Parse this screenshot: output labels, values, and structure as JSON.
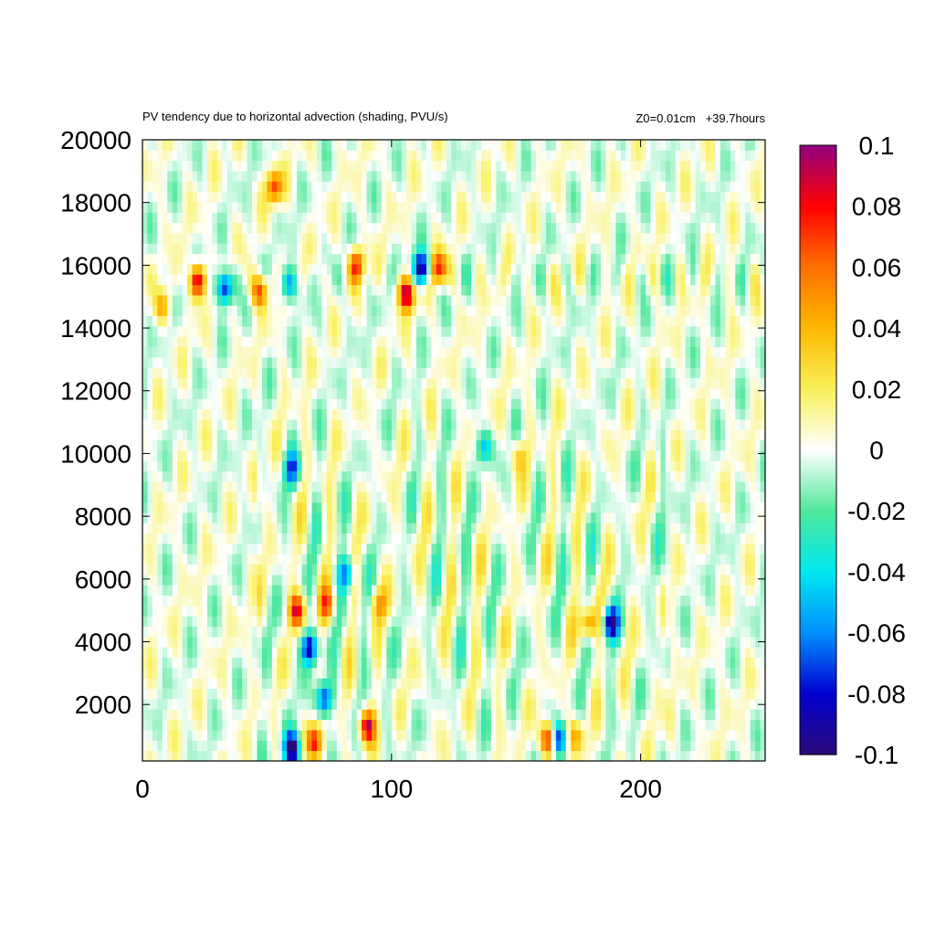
{
  "chart_data": {
    "type": "heatmap",
    "title": "PV tendency due to horizontal advection (shading, PVU/s)",
    "subtitle": "Z0=0.01cm   +39.7hours",
    "xlabel": "",
    "ylabel": "",
    "xlim": [
      0,
      250
    ],
    "ylim": [
      200,
      20000
    ],
    "x_ticks": [
      0,
      100,
      200
    ],
    "y_ticks": [
      2000,
      4000,
      6000,
      8000,
      10000,
      12000,
      14000,
      16000,
      18000,
      20000
    ],
    "grid": false,
    "grid_resolution": {
      "nx": 125,
      "ny": 60
    },
    "colorbar": {
      "min": -0.1,
      "max": 0.1,
      "ticks": [
        0.1,
        0.08,
        0.06,
        0.04,
        0.02,
        0,
        -0.02,
        -0.04,
        -0.06,
        -0.08,
        -0.1
      ],
      "tick_labels": [
        "0.1",
        "0.08",
        "0.06",
        "0.04",
        "0.02",
        "0",
        "-0.02",
        "-0.04",
        "-0.06",
        "-0.08",
        "-0.1"
      ],
      "placement": "right"
    },
    "colorscale": [
      {
        "v": -0.1,
        "color": "#2a0a78"
      },
      {
        "v": -0.08,
        "color": "#0000d0"
      },
      {
        "v": -0.06,
        "color": "#0090ff"
      },
      {
        "v": -0.04,
        "color": "#00e8f0"
      },
      {
        "v": -0.02,
        "color": "#50e89a"
      },
      {
        "v": 0,
        "color": "#ffffff"
      },
      {
        "v": 0.02,
        "color": "#f8f05a"
      },
      {
        "v": 0.04,
        "color": "#ffb800"
      },
      {
        "v": 0.06,
        "color": "#ff7000"
      },
      {
        "v": 0.08,
        "color": "#ff0000"
      },
      {
        "v": 0.1,
        "color": "#900080"
      }
    ],
    "features": [
      {
        "x": 60,
        "y": 600,
        "value": -0.11
      },
      {
        "x": 74,
        "y": 5200,
        "value": 0.05
      },
      {
        "x": 62,
        "y": 5000,
        "value": 0.08
      },
      {
        "x": 67,
        "y": 3800,
        "value": -0.09
      },
      {
        "x": 73,
        "y": 2200,
        "value": -0.08
      },
      {
        "x": 90,
        "y": 1300,
        "value": 0.09
      },
      {
        "x": 69,
        "y": 800,
        "value": 0.07
      },
      {
        "x": 60,
        "y": 9500,
        "value": -0.06
      },
      {
        "x": 82,
        "y": 6200,
        "value": -0.06
      },
      {
        "x": 95,
        "y": 5200,
        "value": 0.04
      },
      {
        "x": 188,
        "y": 4600,
        "value": -0.09
      },
      {
        "x": 179,
        "y": 4600,
        "value": 0.06
      },
      {
        "x": 163,
        "y": 900,
        "value": 0.09
      },
      {
        "x": 167,
        "y": 900,
        "value": -0.08
      },
      {
        "x": 174,
        "y": 1000,
        "value": 0.04
      },
      {
        "x": 22,
        "y": 15500,
        "value": 0.09
      },
      {
        "x": 33,
        "y": 15300,
        "value": -0.09
      },
      {
        "x": 47,
        "y": 15200,
        "value": 0.07
      },
      {
        "x": 59,
        "y": 15400,
        "value": -0.06
      },
      {
        "x": 53,
        "y": 18500,
        "value": 0.07
      },
      {
        "x": 112,
        "y": 15900,
        "value": -0.1
      },
      {
        "x": 106,
        "y": 15100,
        "value": 0.1
      },
      {
        "x": 119,
        "y": 15900,
        "value": 0.08
      },
      {
        "x": 86,
        "y": 16000,
        "value": 0.07
      },
      {
        "x": 8,
        "y": 14700,
        "value": 0.04
      },
      {
        "x": 137,
        "y": 10200,
        "value": -0.05
      },
      {
        "x": 151,
        "y": 9900,
        "value": 0.03
      }
    ]
  }
}
